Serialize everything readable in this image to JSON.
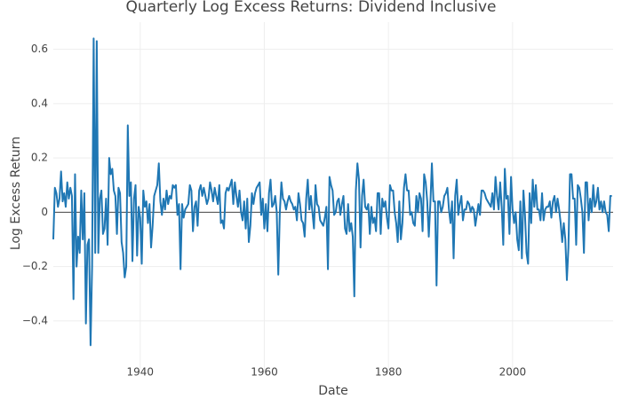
{
  "chart_data": {
    "type": "line",
    "title": "Quarterly Log Excess Returns: Dividend Inclusive",
    "x_label": "Date",
    "y_label": "Log Excess Return",
    "xlim": [
      1926,
      2016.2
    ],
    "ylim": [
      -0.59,
      0.7
    ],
    "xticks": [
      1940,
      1960,
      1980,
      2000
    ],
    "yticks": [
      {
        "value": -0.4,
        "label": "−0.4"
      },
      {
        "value": -0.2,
        "label": "−0.2"
      },
      0,
      0.2,
      0.4,
      0.6
    ],
    "grid": true,
    "zeroline": true,
    "x": [
      1926,
      1926.25,
      1926.5,
      1926.75,
      1927,
      1927.25,
      1927.5,
      1927.75,
      1928,
      1928.25,
      1928.5,
      1928.75,
      1929,
      1929.25,
      1929.5,
      1929.75,
      1930,
      1930.25,
      1930.5,
      1930.75,
      1931,
      1931.25,
      1931.5,
      1931.75,
      1932,
      1932.25,
      1932.5,
      1932.75,
      1933,
      1933.25,
      1933.5,
      1933.75,
      1934,
      1934.25,
      1934.5,
      1934.75,
      1935,
      1935.25,
      1935.5,
      1935.75,
      1936,
      1936.25,
      1936.5,
      1936.75,
      1937,
      1937.25,
      1937.5,
      1937.75,
      1938,
      1938.25,
      1938.5,
      1938.75,
      1939,
      1939.25,
      1939.5,
      1939.75,
      1940,
      1940.25,
      1940.5,
      1940.75,
      1941,
      1941.25,
      1941.5,
      1941.75,
      1942,
      1942.25,
      1942.5,
      1942.75,
      1943,
      1943.25,
      1943.5,
      1943.75,
      1944,
      1944.25,
      1944.5,
      1944.75,
      1945,
      1945.25,
      1945.5,
      1945.75,
      1946,
      1946.25,
      1946.5,
      1946.75,
      1947,
      1947.25,
      1947.5,
      1947.75,
      1948,
      1948.25,
      1948.5,
      1948.75,
      1949,
      1949.25,
      1949.5,
      1949.75,
      1950,
      1950.25,
      1950.5,
      1950.75,
      1951,
      1951.25,
      1951.5,
      1951.75,
      1952,
      1952.25,
      1952.5,
      1952.75,
      1953,
      1953.25,
      1953.5,
      1953.75,
      1954,
      1954.25,
      1954.5,
      1954.75,
      1955,
      1955.25,
      1955.5,
      1955.75,
      1956,
      1956.25,
      1956.5,
      1956.75,
      1957,
      1957.25,
      1957.5,
      1957.75,
      1958,
      1958.25,
      1958.5,
      1958.75,
      1959,
      1959.25,
      1959.5,
      1959.75,
      1960,
      1960.25,
      1960.5,
      1960.75,
      1961,
      1961.25,
      1961.5,
      1961.75,
      1962,
      1962.25,
      1962.5,
      1962.75,
      1963,
      1963.25,
      1963.5,
      1963.75,
      1964,
      1964.25,
      1964.5,
      1964.75,
      1965,
      1965.25,
      1965.5,
      1965.75,
      1966,
      1966.25,
      1966.5,
      1966.75,
      1967,
      1967.25,
      1967.5,
      1967.75,
      1968,
      1968.25,
      1968.5,
      1968.75,
      1969,
      1969.25,
      1969.5,
      1969.75,
      1970,
      1970.25,
      1970.5,
      1970.75,
      1971,
      1971.25,
      1971.5,
      1971.75,
      1972,
      1972.25,
      1972.5,
      1972.75,
      1973,
      1973.25,
      1973.5,
      1973.75,
      1974,
      1974.25,
      1974.5,
      1974.75,
      1975,
      1975.25,
      1975.5,
      1975.75,
      1976,
      1976.25,
      1976.5,
      1976.75,
      1977,
      1977.25,
      1977.5,
      1977.75,
      1978,
      1978.25,
      1978.5,
      1978.75,
      1979,
      1979.25,
      1979.5,
      1979.75,
      1980,
      1980.25,
      1980.5,
      1980.75,
      1981,
      1981.25,
      1981.5,
      1981.75,
      1982,
      1982.25,
      1982.5,
      1982.75,
      1983,
      1983.25,
      1983.5,
      1983.75,
      1984,
      1984.25,
      1984.5,
      1984.75,
      1985,
      1985.25,
      1985.5,
      1985.75,
      1986,
      1986.25,
      1986.5,
      1986.75,
      1987,
      1987.25,
      1987.5,
      1987.75,
      1988,
      1988.25,
      1988.5,
      1988.75,
      1989,
      1989.25,
      1989.5,
      1989.75,
      1990,
      1990.25,
      1990.5,
      1990.75,
      1991,
      1991.25,
      1991.5,
      1991.75,
      1992,
      1992.25,
      1992.5,
      1992.75,
      1993,
      1993.25,
      1993.5,
      1993.75,
      1994,
      1994.25,
      1994.5,
      1994.75,
      1995,
      1995.25,
      1995.5,
      1995.75,
      1996,
      1996.25,
      1996.5,
      1996.75,
      1997,
      1997.25,
      1997.5,
      1997.75,
      1998,
      1998.25,
      1998.5,
      1998.75,
      1999,
      1999.25,
      1999.5,
      1999.75,
      2000,
      2000.25,
      2000.5,
      2000.75,
      2001,
      2001.25,
      2001.5,
      2001.75,
      2002,
      2002.25,
      2002.5,
      2002.75,
      2003,
      2003.25,
      2003.5,
      2003.75,
      2004,
      2004.25,
      2004.5,
      2004.75,
      2005,
      2005.25,
      2005.5,
      2005.75,
      2006,
      2006.25,
      2006.5,
      2006.75,
      2007,
      2007.25,
      2007.5,
      2007.75,
      2008,
      2008.25,
      2008.5,
      2008.75,
      2009,
      2009.25,
      2009.5,
      2009.75,
      2010,
      2010.25,
      2010.5,
      2010.75,
      2011,
      2011.25,
      2011.5,
      2011.75,
      2012,
      2012.25,
      2012.5,
      2012.75,
      2013,
      2013.25,
      2013.5,
      2013.75,
      2014,
      2014.25,
      2014.5,
      2014.75,
      2015,
      2015.25,
      2015.5,
      2015.75,
      2016
    ],
    "series": [
      {
        "name": "Log Excess Return",
        "color": "#1f77b4",
        "values": [
          -0.1,
          0.09,
          0.07,
          0.02,
          0.05,
          0.15,
          0.04,
          0.07,
          0.02,
          0.11,
          0.05,
          0.09,
          0.06,
          -0.32,
          0.14,
          -0.2,
          -0.09,
          -0.15,
          0.08,
          -0.1,
          0.07,
          -0.41,
          -0.12,
          -0.1,
          -0.49,
          -0.2,
          0.64,
          -0.15,
          0.63,
          -0.15,
          0.05,
          0.08,
          -0.08,
          -0.06,
          0.05,
          -0.12,
          0.2,
          0.14,
          0.16,
          0.08,
          0.06,
          -0.08,
          0.09,
          0.07,
          -0.11,
          -0.15,
          -0.24,
          -0.2,
          0.32,
          0.06,
          0.11,
          -0.18,
          0.05,
          0.1,
          -0.16,
          0.02,
          -0.02,
          -0.19,
          0.08,
          0.02,
          0.04,
          -0.04,
          0.03,
          -0.13,
          -0.05,
          0.06,
          0.08,
          0.1,
          0.18,
          0.04,
          -0.01,
          0.05,
          0.01,
          0.08,
          0.03,
          0.06,
          0.05,
          0.1,
          0.09,
          0.1,
          -0.01,
          0.03,
          -0.21,
          0.03,
          -0.02,
          0.01,
          0.02,
          0.03,
          0.1,
          0.08,
          -0.07,
          0.02,
          0.04,
          -0.05,
          0.08,
          0.1,
          0.06,
          0.09,
          0.06,
          0.03,
          0.05,
          0.11,
          0.08,
          0.04,
          0.09,
          0.06,
          0.03,
          0.1,
          -0.04,
          -0.03,
          -0.06,
          0.07,
          0.09,
          0.08,
          0.1,
          0.12,
          0.03,
          0.11,
          0.06,
          0.02,
          0.08,
          0.0,
          -0.03,
          0.04,
          -0.06,
          0.05,
          -0.11,
          -0.05,
          0.07,
          0.03,
          0.07,
          0.09,
          0.1,
          0.11,
          -0.01,
          0.05,
          -0.06,
          0.03,
          -0.07,
          0.07,
          0.12,
          0.02,
          0.03,
          0.06,
          0.0,
          -0.23,
          0.0,
          0.11,
          0.05,
          0.04,
          0.01,
          0.04,
          0.06,
          0.04,
          0.03,
          0.01,
          0.02,
          -0.03,
          0.07,
          0.03,
          -0.03,
          -0.04,
          -0.09,
          0.05,
          0.12,
          0.01,
          0.06,
          0.0,
          -0.06,
          0.1,
          0.03,
          0.02,
          -0.03,
          -0.04,
          -0.05,
          -0.02,
          0.02,
          -0.21,
          0.13,
          0.1,
          0.08,
          -0.01,
          0.0,
          0.04,
          0.05,
          -0.01,
          0.03,
          0.06,
          -0.06,
          -0.08,
          0.03,
          -0.07,
          -0.04,
          -0.09,
          -0.31,
          0.08,
          0.18,
          0.12,
          -0.13,
          0.06,
          0.12,
          0.02,
          0.01,
          0.03,
          -0.08,
          0.02,
          -0.04,
          -0.02,
          -0.07,
          0.07,
          0.07,
          -0.08,
          0.05,
          0.02,
          0.04,
          -0.02,
          -0.06,
          0.1,
          0.08,
          0.08,
          0.0,
          -0.04,
          -0.11,
          0.04,
          -0.1,
          -0.04,
          0.09,
          0.14,
          0.08,
          0.08,
          -0.01,
          0.0,
          -0.04,
          -0.05,
          0.06,
          0.0,
          0.07,
          0.05,
          -0.07,
          0.14,
          0.11,
          0.04,
          -0.09,
          0.03,
          0.18,
          0.04,
          0.04,
          -0.27,
          0.04,
          0.04,
          0.0,
          0.02,
          0.06,
          0.07,
          0.09,
          0.01,
          -0.04,
          0.04,
          -0.17,
          0.06,
          0.12,
          -0.01,
          0.03,
          0.06,
          -0.03,
          0.01,
          0.01,
          0.04,
          0.03,
          0.0,
          0.02,
          0.01,
          -0.05,
          -0.01,
          0.03,
          -0.01,
          0.08,
          0.08,
          0.07,
          0.05,
          0.04,
          0.03,
          0.02,
          0.07,
          0.01,
          0.13,
          0.06,
          0.01,
          0.11,
          0.02,
          -0.12,
          0.16,
          0.05,
          0.06,
          -0.08,
          0.13,
          0.01,
          -0.04,
          0.0,
          -0.1,
          -0.14,
          0.04,
          -0.17,
          0.08,
          -0.01,
          -0.15,
          -0.19,
          0.07,
          -0.04,
          0.12,
          0.02,
          0.1,
          0.01,
          0.01,
          -0.03,
          0.07,
          -0.03,
          0.01,
          0.02,
          0.02,
          0.04,
          -0.02,
          0.04,
          0.06,
          0.0,
          0.05,
          0.01,
          -0.04,
          -0.11,
          -0.04,
          -0.1,
          -0.25,
          -0.13,
          0.14,
          0.14,
          0.05,
          0.05,
          -0.12,
          0.1,
          0.09,
          0.05,
          0.0,
          -0.15,
          0.11,
          0.11,
          -0.03,
          0.05,
          0.0,
          0.1,
          0.02,
          0.04,
          0.09,
          0.01,
          0.04,
          0.0,
          0.04,
          0.0,
          -0.01,
          -0.07,
          0.06,
          0.06
        ]
      }
    ]
  }
}
